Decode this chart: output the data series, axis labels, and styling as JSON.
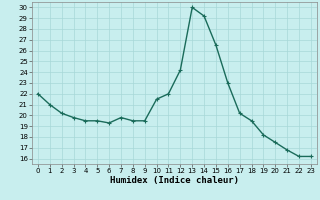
{
  "x": [
    0,
    1,
    2,
    3,
    4,
    5,
    6,
    7,
    8,
    9,
    10,
    11,
    12,
    13,
    14,
    15,
    16,
    17,
    18,
    19,
    20,
    21,
    22,
    23
  ],
  "y": [
    22.0,
    21.0,
    20.2,
    19.8,
    19.5,
    19.5,
    19.3,
    19.8,
    19.5,
    19.5,
    21.5,
    22.0,
    24.2,
    30.0,
    29.2,
    26.5,
    23.0,
    20.2,
    19.5,
    18.2,
    17.5,
    16.8,
    16.2,
    16.2
  ],
  "line_color": "#1a6b5a",
  "marker": "+",
  "marker_color": "#1a6b5a",
  "bg_color": "#c8eeee",
  "grid_color": "#a8d8d8",
  "axis_label": "Humidex (Indice chaleur)",
  "yticks": [
    16,
    17,
    18,
    19,
    20,
    21,
    22,
    23,
    24,
    25,
    26,
    27,
    28,
    29,
    30
  ],
  "xticks": [
    0,
    1,
    2,
    3,
    4,
    5,
    6,
    7,
    8,
    9,
    10,
    11,
    12,
    13,
    14,
    15,
    16,
    17,
    18,
    19,
    20,
    21,
    22,
    23
  ],
  "ylim": [
    15.5,
    30.5
  ],
  "xlim": [
    -0.5,
    23.5
  ],
  "tick_fontsize": 5.0,
  "xlabel_fontsize": 6.5,
  "linewidth": 1.0,
  "markersize": 3.5
}
